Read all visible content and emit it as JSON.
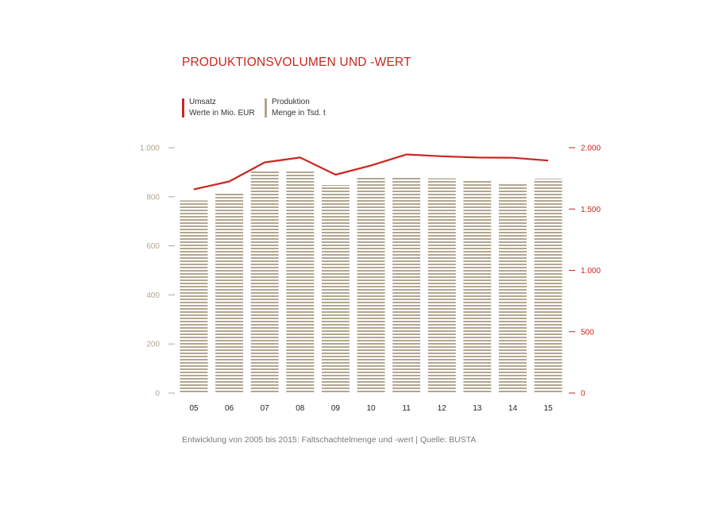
{
  "title": "PRODUKTIONSVOLUMEN UND -WERT",
  "legend": {
    "umsatz": {
      "line1": "Umsatz",
      "line2": "Werte in Mio. EUR",
      "color": "#c9271f"
    },
    "produktion": {
      "line1": "Produktion",
      "line2": "Menge in Tsd. t",
      "color": "#b3a690"
    }
  },
  "source": "Entwicklung von 2005 bis 2015: Faltschachtelmenge und -wert | Quelle: BUSTA",
  "chart_data": {
    "type": "bar",
    "categories": [
      "05",
      "06",
      "07",
      "08",
      "09",
      "10",
      "11",
      "12",
      "13",
      "14",
      "15"
    ],
    "series": [
      {
        "name": "Produktion",
        "kind": "bar",
        "axis": "left",
        "color": "#b3a690",
        "values": [
          785,
          815,
          905,
          908,
          848,
          878,
          877,
          875,
          870,
          858,
          873
        ]
      },
      {
        "name": "Umsatz",
        "kind": "line",
        "axis": "right",
        "color": "#c9271f",
        "values": [
          1660,
          1725,
          1880,
          1920,
          1780,
          1855,
          1945,
          1930,
          1920,
          1918,
          1895
        ]
      }
    ],
    "y_left": {
      "range": [
        0,
        1000
      ],
      "ticks": [
        "0",
        "200",
        "400",
        "600",
        "800",
        "1.000"
      ],
      "tick_values": [
        0,
        200,
        400,
        600,
        800,
        1000
      ]
    },
    "y_right": {
      "range": [
        0,
        2000
      ],
      "ticks": [
        "0",
        "500",
        "1.000",
        "1.500",
        "2.000"
      ],
      "tick_values": [
        0,
        500,
        1000,
        1500,
        2000
      ]
    },
    "grid": false
  }
}
